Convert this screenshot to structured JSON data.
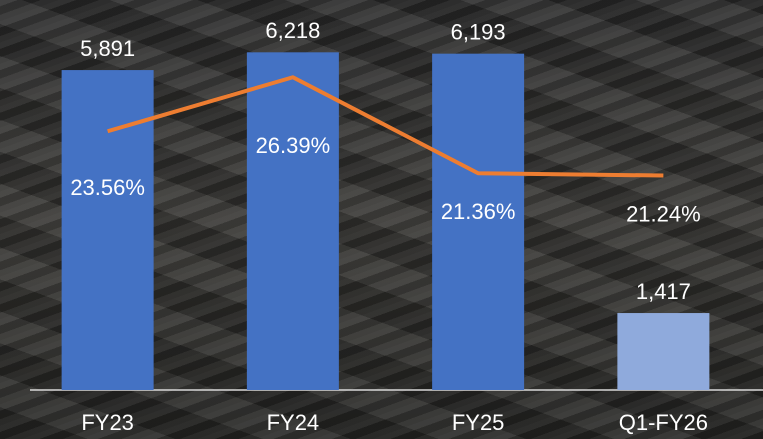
{
  "chart_data": {
    "type": "bar-line",
    "categories": [
      "FY23",
      "FY24",
      "FY25",
      "Q1-FY26"
    ],
    "series": [
      {
        "type": "bar",
        "colors": [
          "#4472c4",
          "#4472c4",
          "#4472c4",
          "#8faadc"
        ],
        "values": [
          5891,
          6218,
          6193,
          1417
        ],
        "value_labels": [
          "5,891",
          "6,218",
          "6,193",
          "1,417"
        ]
      },
      {
        "type": "line",
        "axis": "y2",
        "color": "#ed7d31",
        "values": [
          23.56,
          26.39,
          21.36,
          21.24
        ],
        "value_labels": [
          "23.56%",
          "26.39%",
          "21.36%",
          "21.24%"
        ]
      }
    ],
    "ylim": [
      0,
      6500
    ],
    "y2lim": [
      10,
      28.5
    ]
  }
}
